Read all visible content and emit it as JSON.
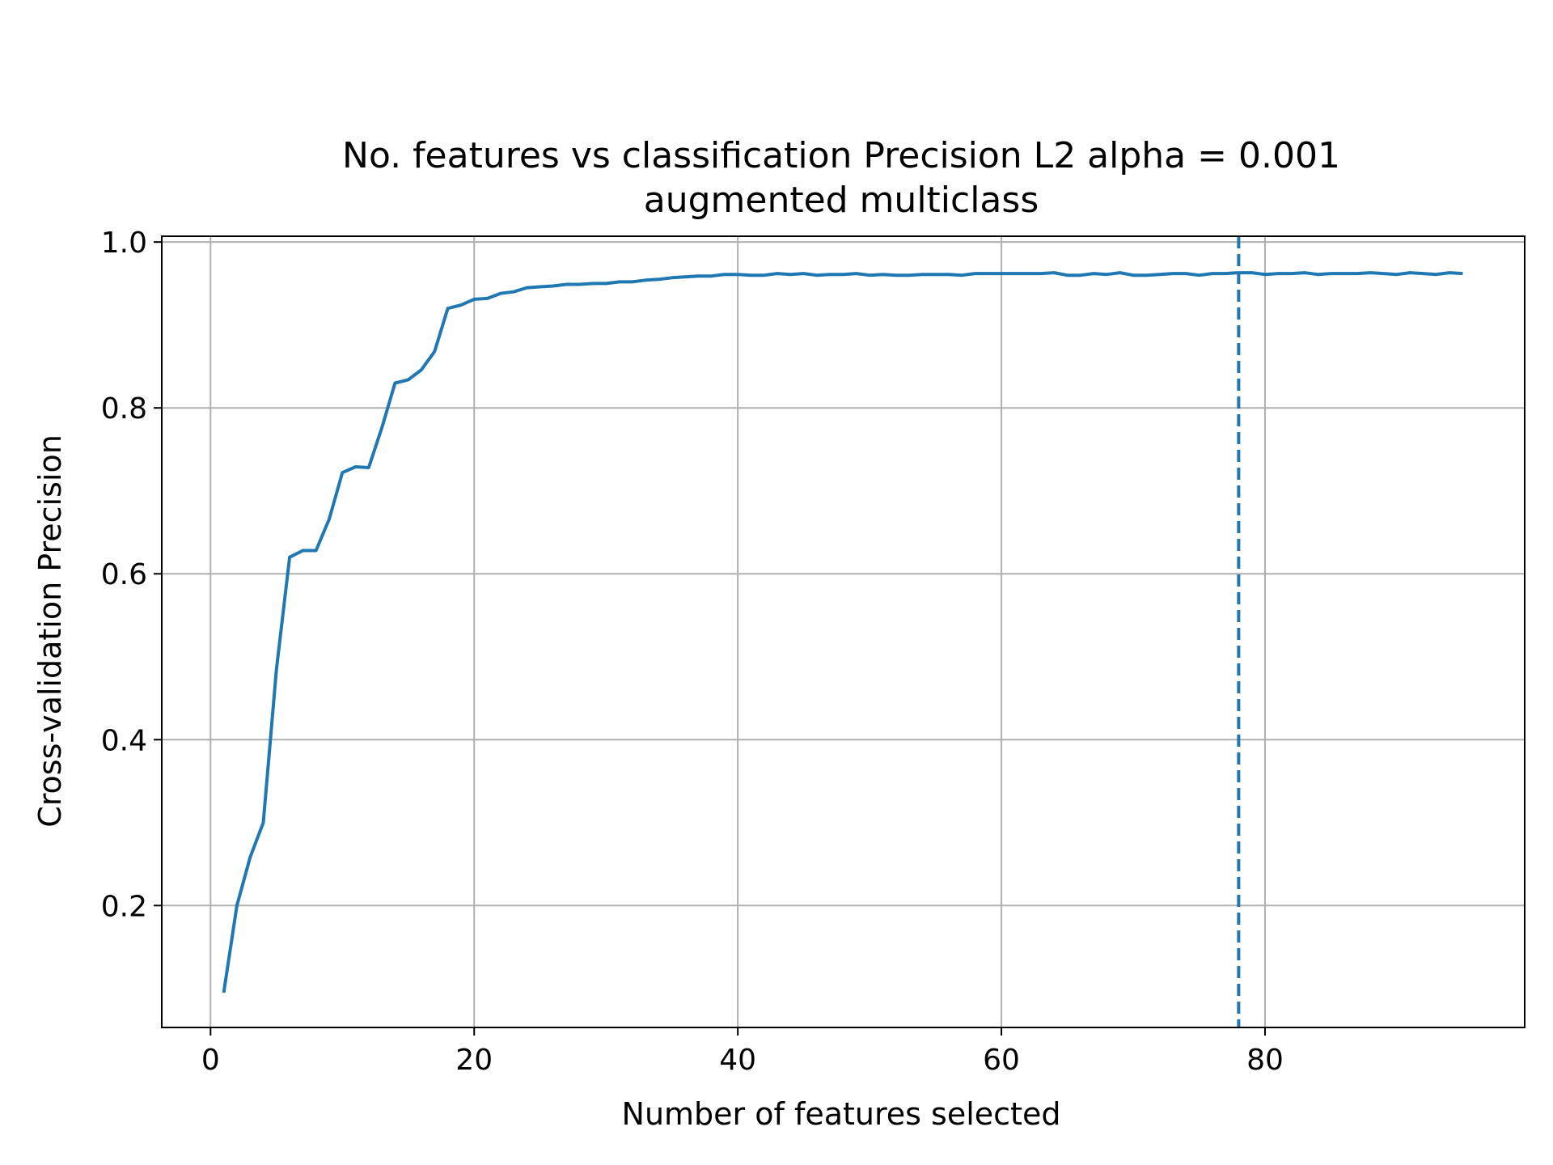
{
  "chart_data": {
    "type": "line",
    "title": "No. features vs classification Precision L2 alpha = 0.001",
    "subtitle": "augmented multiclass",
    "xlabel": "Number of features selected",
    "ylabel": "Cross-validation Precision",
    "xlim": [
      -3.7,
      99.7
    ],
    "ylim": [
      0.053,
      1.007
    ],
    "xticks": [
      0,
      20,
      40,
      60,
      80
    ],
    "xtick_labels": [
      "0",
      "20",
      "40",
      "60",
      "80"
    ],
    "yticks": [
      0.2,
      0.4,
      0.6,
      0.8,
      1.0
    ],
    "ytick_labels": [
      "0.2",
      "0.4",
      "0.6",
      "0.8",
      "1.0"
    ],
    "grid": true,
    "series": [
      {
        "color": "#1f77b4",
        "x": [
          1,
          2,
          3,
          4,
          5,
          6,
          7,
          8,
          9,
          10,
          11,
          12,
          13,
          14,
          15,
          16,
          17,
          18,
          19,
          20,
          21,
          22,
          23,
          24,
          25,
          26,
          27,
          28,
          29,
          30,
          31,
          32,
          33,
          34,
          35,
          36,
          37,
          38,
          39,
          40,
          41,
          42,
          43,
          44,
          45,
          46,
          47,
          48,
          49,
          50,
          51,
          52,
          53,
          54,
          55,
          56,
          57,
          58,
          59,
          60,
          61,
          62,
          63,
          64,
          65,
          66,
          67,
          68,
          69,
          70,
          71,
          72,
          73,
          74,
          75,
          76,
          77,
          78,
          79,
          80,
          81,
          82,
          83,
          84,
          85,
          86,
          87,
          88,
          89,
          90,
          91,
          92,
          93,
          94,
          95
        ],
        "y": [
          0.095,
          0.2,
          0.258,
          0.3,
          0.485,
          0.62,
          0.628,
          0.628,
          0.666,
          0.722,
          0.729,
          0.728,
          0.776,
          0.83,
          0.834,
          0.846,
          0.868,
          0.92,
          0.924,
          0.931,
          0.932,
          0.938,
          0.94,
          0.945,
          0.946,
          0.947,
          0.949,
          0.949,
          0.95,
          0.95,
          0.952,
          0.952,
          0.954,
          0.955,
          0.957,
          0.958,
          0.959,
          0.959,
          0.961,
          0.961,
          0.96,
          0.96,
          0.962,
          0.961,
          0.962,
          0.96,
          0.961,
          0.961,
          0.962,
          0.96,
          0.961,
          0.96,
          0.96,
          0.961,
          0.961,
          0.961,
          0.96,
          0.962,
          0.962,
          0.962,
          0.962,
          0.962,
          0.962,
          0.963,
          0.96,
          0.96,
          0.962,
          0.961,
          0.963,
          0.96,
          0.96,
          0.961,
          0.962,
          0.962,
          0.96,
          0.962,
          0.962,
          0.963,
          0.963,
          0.961,
          0.962,
          0.962,
          0.963,
          0.961,
          0.962,
          0.962,
          0.962,
          0.963,
          0.962,
          0.961,
          0.963,
          0.962,
          0.961,
          0.963,
          0.962
        ]
      }
    ],
    "vline": {
      "x": 78,
      "color": "#1f77b4",
      "style": "dashed"
    }
  }
}
